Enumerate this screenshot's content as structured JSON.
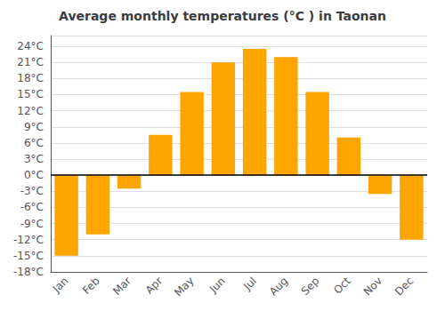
{
  "chart_data": {
    "type": "bar",
    "title": "Average monthly temperatures (°C ) in Taonan",
    "categories": [
      "Jan",
      "Feb",
      "Mar",
      "Apr",
      "May",
      "Jun",
      "Jul",
      "Aug",
      "Sep",
      "Oct",
      "Nov",
      "Dec"
    ],
    "values": [
      -15,
      -11,
      -2.5,
      7.5,
      15.5,
      21,
      23.5,
      22,
      15.5,
      7,
      -3.5,
      -12
    ],
    "color": "#FFA500",
    "ylim": [
      -18,
      26
    ],
    "yticks": [
      {
        "value": -18,
        "label": "-18°C"
      },
      {
        "value": -15,
        "label": "-15°C"
      },
      {
        "value": -12,
        "label": "-12°C"
      },
      {
        "value": -9,
        "label": "-9°C"
      },
      {
        "value": -6,
        "label": "-6°C"
      },
      {
        "value": -3,
        "label": "-3°C"
      },
      {
        "value": 0,
        "label": "0°C"
      },
      {
        "value": 3,
        "label": "3°C"
      },
      {
        "value": 6,
        "label": "6°C"
      },
      {
        "value": 9,
        "label": "9°C"
      },
      {
        "value": 12,
        "label": "12°C"
      },
      {
        "value": 15,
        "label": "15°C"
      },
      {
        "value": 18,
        "label": "18°C"
      },
      {
        "value": 21,
        "label": "21°C"
      },
      {
        "value": 24,
        "label": "24°C"
      }
    ],
    "grid": true
  }
}
